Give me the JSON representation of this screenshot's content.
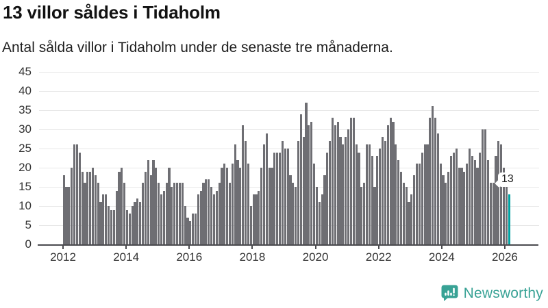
{
  "header": {
    "title": "13 villor såldes i Tidaholm",
    "subtitle": "Antal sålda villor i Tidaholm under de senaste tre månaderna."
  },
  "chart_data": {
    "type": "bar",
    "title": "13 villor såldes i Tidaholm",
    "subtitle": "Antal sålda villor i Tidaholm under de senaste tre månaderna.",
    "x_axis": {
      "unit": "month",
      "start_year": 2012,
      "ticks": [
        2012,
        2014,
        2016,
        2018,
        2020,
        2022,
        2024,
        2026
      ]
    },
    "y_axis": {
      "lim": [
        0,
        45
      ],
      "ticks": [
        0,
        5,
        10,
        15,
        20,
        25,
        30,
        35,
        40,
        45
      ]
    },
    "grid": true,
    "values": [
      18,
      15,
      15,
      20,
      26,
      26,
      24,
      19,
      16,
      19,
      19,
      20,
      18,
      16,
      11,
      13,
      13,
      10,
      9,
      9,
      14,
      19,
      20,
      16,
      9,
      8,
      10,
      11,
      12,
      11,
      16,
      19,
      22,
      18,
      22,
      20,
      16,
      13,
      14,
      16,
      20,
      15,
      16,
      16,
      16,
      16,
      10,
      7,
      6,
      8,
      8,
      13,
      14,
      16,
      17,
      17,
      15,
      13,
      14,
      16,
      20,
      21,
      20,
      16,
      21,
      26,
      22,
      20,
      31,
      27,
      21,
      10,
      13,
      13,
      14,
      20,
      26,
      29,
      20,
      20,
      24,
      24,
      24,
      27,
      25,
      25,
      18,
      16,
      15,
      27,
      34,
      28,
      37,
      31,
      32,
      21,
      15,
      11,
      13,
      18,
      24,
      27,
      33,
      31,
      32,
      28,
      26,
      28,
      30,
      33,
      33,
      26,
      24,
      15,
      16,
      26,
      26,
      23,
      15,
      23,
      25,
      28,
      27,
      31,
      33,
      32,
      26,
      22,
      19,
      16,
      15,
      11,
      13,
      18,
      21,
      21,
      24,
      26,
      26,
      33,
      36,
      33,
      29,
      21,
      18,
      16,
      19,
      23,
      24,
      25,
      20,
      20,
      19,
      21,
      25,
      23,
      22,
      20,
      24,
      30,
      30,
      22,
      16,
      16,
      23,
      27,
      26,
      20,
      16,
      13
    ],
    "bar_color": "#6e6e73",
    "highlight_last": true,
    "highlight_color": "#00a2a2",
    "annotation": {
      "text": "13",
      "value": 13
    }
  },
  "branding": {
    "name": "Newsworthy",
    "color": "#38a295",
    "icon": "speech-bubble-bar-chart-icon"
  }
}
